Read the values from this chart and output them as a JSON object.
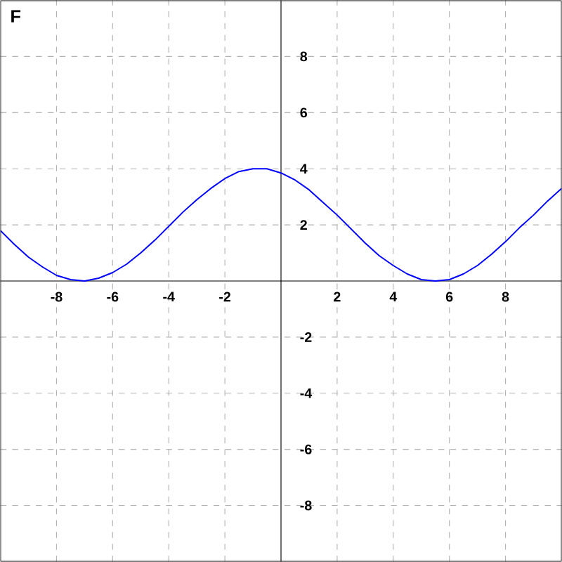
{
  "chart_data": {
    "type": "line",
    "annotations": [
      "F"
    ],
    "x": [
      -10,
      -9.5,
      -9,
      -8.5,
      -8,
      -7.5,
      -7,
      -6.5,
      -6,
      -5.5,
      -5,
      -4.5,
      -4,
      -3.5,
      -3,
      -2.5,
      -2,
      -1.5,
      -1,
      -0.5,
      0,
      0.5,
      1,
      1.5,
      2,
      2.5,
      3,
      3.5,
      4,
      4.5,
      5,
      5.5,
      6,
      6.5,
      7,
      7.5,
      8,
      8.5,
      9,
      9.5,
      10
    ],
    "series": [
      {
        "color": "#0000ff",
        "values": [
          1.8,
          1.3,
          0.85,
          0.5,
          0.2,
          0.05,
          0,
          0.1,
          0.3,
          0.6,
          1.0,
          1.45,
          1.95,
          2.45,
          2.9,
          3.3,
          3.65,
          3.9,
          4.0,
          4.0,
          3.85,
          3.6,
          3.25,
          2.8,
          2.35,
          1.85,
          1.35,
          0.9,
          0.55,
          0.25,
          0.05,
          0,
          0.05,
          0.25,
          0.55,
          0.95,
          1.4,
          1.9,
          2.35,
          2.85,
          3.3
        ]
      }
    ],
    "xlim": [
      -10,
      10
    ],
    "ylim": [
      -10,
      10
    ],
    "xticks": [
      -8,
      -6,
      -4,
      -2,
      2,
      4,
      6,
      8
    ],
    "yticks": [
      -8,
      -6,
      -4,
      -2,
      2,
      4,
      6,
      8
    ],
    "grid": true,
    "marker": "none",
    "line_style": "solid"
  }
}
